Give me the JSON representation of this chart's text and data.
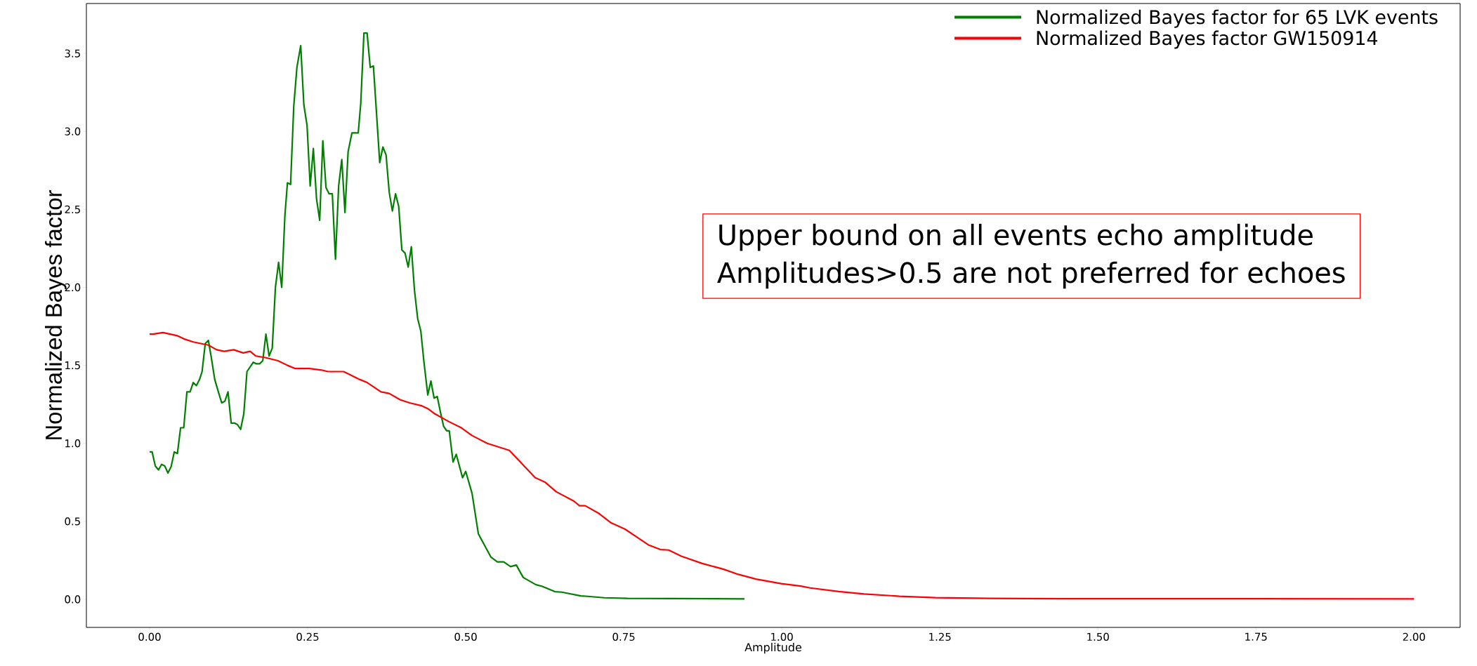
{
  "chart_data": {
    "type": "line",
    "xlabel": "Amplitude",
    "ylabel": "Normalized Bayes factor",
    "xlim": [
      -0.1,
      2.073
    ],
    "ylim": [
      -0.18,
      3.82
    ],
    "xticks": [
      {
        "value": 0,
        "label": "0.00"
      },
      {
        "value": 0.25,
        "label": "0.25"
      },
      {
        "value": 0.5,
        "label": "0.50"
      },
      {
        "value": 0.75,
        "label": "0.75"
      },
      {
        "value": 1,
        "label": "1.00"
      },
      {
        "value": 1.25,
        "label": "1.25"
      },
      {
        "value": 1.5,
        "label": "1.50"
      },
      {
        "value": 1.75,
        "label": "1.75"
      },
      {
        "value": 2,
        "label": "2.00"
      }
    ],
    "yticks": [
      {
        "value": 0,
        "label": "0.0"
      },
      0.5,
      {
        "value": 1,
        "label": "1.0"
      },
      1.5,
      {
        "value": 2,
        "label": "2.0"
      },
      2.5,
      {
        "value": 3,
        "label": "3.0"
      },
      3.5
    ],
    "legend": "top right",
    "marker": "none",
    "line_style": "solid",
    "grid": false,
    "annotations": [
      "Upper bound on all events echo amplitude",
      "Amplitudes>0.5 are not preferred for echoes"
    ],
    "series": [
      {
        "name": "Normalized Bayes factor for 65 LVK events",
        "color": "#008000",
        "x": [
          0,
          0.004,
          0.009,
          0.014,
          0.019,
          0.024,
          0.029,
          0.034,
          0.039,
          0.044,
          0.049,
          0.054,
          0.059,
          0.064,
          0.069,
          0.074,
          0.079,
          0.083,
          0.088,
          0.093,
          0.098,
          0.103,
          0.108,
          0.114,
          0.119,
          0.124,
          0.129,
          0.134,
          0.139,
          0.144,
          0.149,
          0.154,
          0.159,
          0.164,
          0.169,
          0.174,
          0.179,
          0.184,
          0.189,
          0.194,
          0.199,
          0.204,
          0.209,
          0.214,
          0.218,
          0.223,
          0.228,
          0.233,
          0.239,
          0.244,
          0.249,
          0.254,
          0.259,
          0.264,
          0.269,
          0.274,
          0.279,
          0.284,
          0.289,
          0.294,
          0.299,
          0.304,
          0.309,
          0.314,
          0.32,
          0.325,
          0.33,
          0.334,
          0.339,
          0.344,
          0.349,
          0.354,
          0.359,
          0.364,
          0.369,
          0.374,
          0.379,
          0.384,
          0.389,
          0.394,
          0.399,
          0.404,
          0.409,
          0.414,
          0.419,
          0.424,
          0.429,
          0.434,
          0.44,
          0.445,
          0.45,
          0.455,
          0.46,
          0.465,
          0.47,
          0.474,
          0.48,
          0.485,
          0.495,
          0.5,
          0.51,
          0.52,
          0.54,
          0.55,
          0.56,
          0.571,
          0.58,
          0.591,
          0.611,
          0.621,
          0.641,
          0.652,
          0.682,
          0.693,
          0.719,
          0.756,
          0.941
        ],
        "values": [
          0.945,
          0.945,
          0.855,
          0.83,
          0.865,
          0.855,
          0.81,
          0.85,
          0.945,
          0.935,
          1.1,
          1.1,
          1.33,
          1.33,
          1.39,
          1.37,
          1.41,
          1.46,
          1.64,
          1.66,
          1.54,
          1.41,
          1.34,
          1.26,
          1.27,
          1.33,
          1.13,
          1.13,
          1.12,
          1.09,
          1.19,
          1.46,
          1.49,
          1.52,
          1.51,
          1.51,
          1.53,
          1.7,
          1.56,
          1.61,
          2.0,
          2.16,
          2.0,
          2.46,
          2.67,
          2.66,
          3.16,
          3.41,
          3.55,
          3.17,
          3.04,
          2.65,
          2.89,
          2.57,
          2.43,
          2.94,
          2.64,
          2.6,
          2.6,
          2.18,
          2.65,
          2.82,
          2.48,
          2.87,
          2.99,
          2.99,
          2.99,
          3.18,
          3.63,
          3.63,
          3.41,
          3.42,
          3.11,
          2.8,
          2.9,
          2.85,
          2.61,
          2.49,
          2.6,
          2.52,
          2.24,
          2.22,
          2.13,
          2.26,
          1.98,
          1.8,
          1.72,
          1.52,
          1.31,
          1.4,
          1.29,
          1.3,
          1.2,
          1.11,
          1.08,
          1.08,
          0.88,
          0.93,
          0.78,
          0.82,
          0.68,
          0.42,
          0.27,
          0.24,
          0.24,
          0.21,
          0.22,
          0.14,
          0.094,
          0.083,
          0.049,
          0.046,
          0.022,
          0.019,
          0.01,
          0.006,
          0.003
        ]
      },
      {
        "name": "Normalized Bayes factor GW150914",
        "color": "#ff0000",
        "x": [
          0,
          0.005,
          0.021,
          0.044,
          0.054,
          0.069,
          0.093,
          0.106,
          0.118,
          0.133,
          0.148,
          0.159,
          0.168,
          0.183,
          0.203,
          0.218,
          0.23,
          0.245,
          0.253,
          0.272,
          0.282,
          0.307,
          0.317,
          0.332,
          0.344,
          0.366,
          0.379,
          0.396,
          0.411,
          0.431,
          0.441,
          0.451,
          0.473,
          0.493,
          0.51,
          0.534,
          0.569,
          0.589,
          0.61,
          0.626,
          0.643,
          0.671,
          0.68,
          0.689,
          0.711,
          0.73,
          0.752,
          0.789,
          0.808,
          0.821,
          0.841,
          0.874,
          0.908,
          0.931,
          0.959,
          0.999,
          1.03,
          1.045,
          1.09,
          1.13,
          1.186,
          1.243,
          1.328,
          1.441,
          2.0
        ],
        "values": [
          1.7,
          1.7,
          1.71,
          1.69,
          1.67,
          1.65,
          1.63,
          1.6,
          1.59,
          1.6,
          1.58,
          1.59,
          1.56,
          1.55,
          1.53,
          1.5,
          1.48,
          1.48,
          1.48,
          1.47,
          1.46,
          1.46,
          1.44,
          1.41,
          1.39,
          1.33,
          1.32,
          1.28,
          1.26,
          1.24,
          1.22,
          1.19,
          1.14,
          1.1,
          1.05,
          1.0,
          0.955,
          0.87,
          0.78,
          0.75,
          0.69,
          0.63,
          0.6,
          0.6,
          0.55,
          0.49,
          0.45,
          0.349,
          0.319,
          0.316,
          0.277,
          0.23,
          0.193,
          0.16,
          0.13,
          0.101,
          0.085,
          0.073,
          0.05,
          0.034,
          0.02,
          0.011,
          0.006,
          0.004,
          0.003
        ]
      }
    ]
  }
}
